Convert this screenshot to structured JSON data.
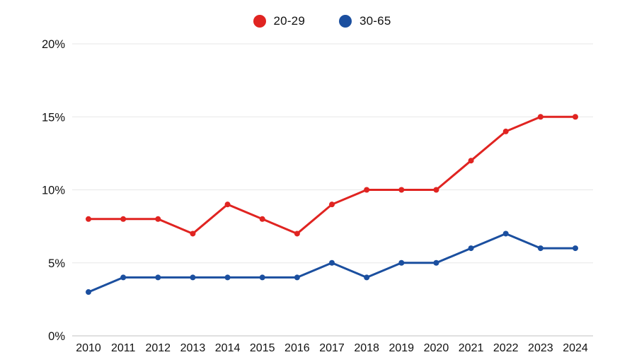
{
  "legend": {
    "items": [
      {
        "label": "20-29",
        "color": "#e02421"
      },
      {
        "label": "30-65",
        "color": "#1b4f9f"
      }
    ]
  },
  "chart_data": {
    "type": "line",
    "title": "",
    "xlabel": "",
    "ylabel": "",
    "categories": [
      "2010",
      "2011",
      "2012",
      "2013",
      "2014",
      "2015",
      "2016",
      "2017",
      "2018",
      "2019",
      "2020",
      "2021",
      "2022",
      "2023",
      "2024"
    ],
    "series": [
      {
        "name": "20-29",
        "color": "#e02421",
        "values": [
          8,
          8,
          8,
          7,
          9,
          8,
          7,
          9,
          10,
          10,
          10,
          12,
          14,
          15,
          15
        ]
      },
      {
        "name": "30-65",
        "color": "#1b4f9f",
        "values": [
          3,
          4,
          4,
          4,
          4,
          4,
          4,
          5,
          4,
          5,
          5,
          6,
          7,
          6,
          6
        ]
      }
    ],
    "ylim": [
      0,
      20
    ],
    "yticks": [
      0,
      5,
      10,
      15,
      20
    ],
    "ytick_labels": [
      "0%",
      "5%",
      "10%",
      "15%",
      "20%"
    ],
    "grid": true,
    "legend_position": "top-center",
    "colors": {
      "gridline": "#e7e7e7",
      "axis_line": "#c2c2c2",
      "tick_text": "#111111",
      "background": "#ffffff"
    }
  }
}
